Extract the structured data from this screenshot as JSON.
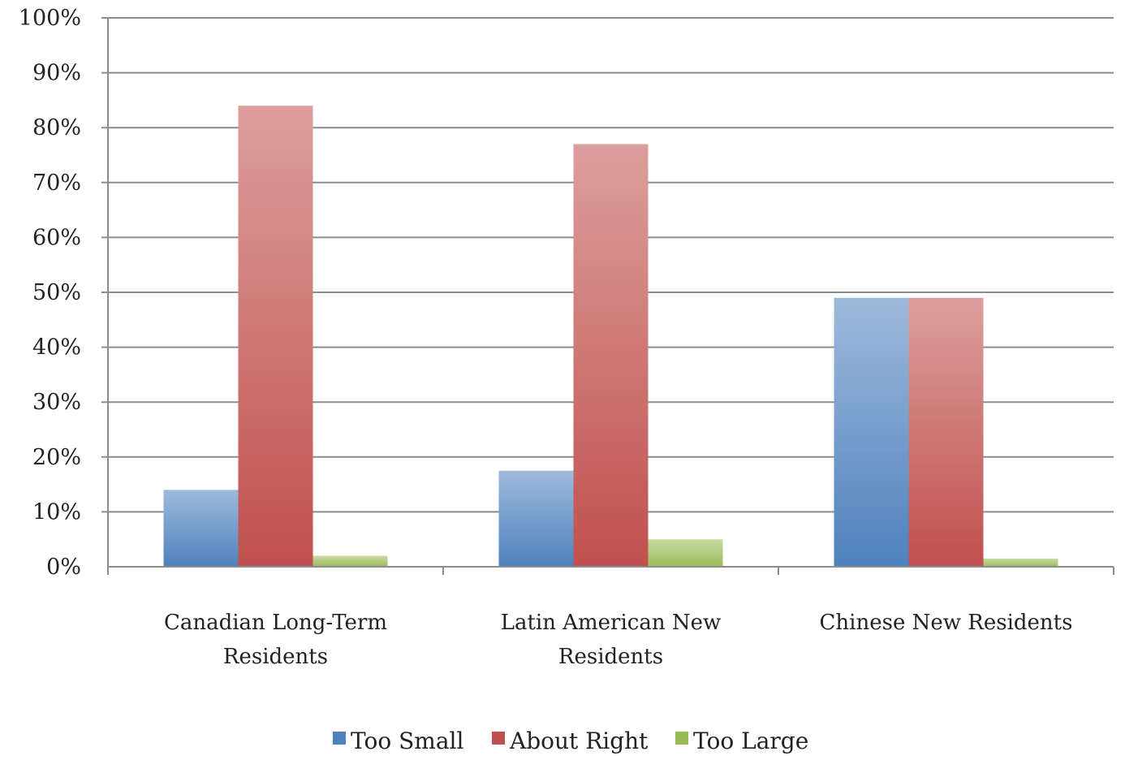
{
  "chart_data": {
    "type": "bar",
    "title": "",
    "xlabel": "",
    "ylabel": "",
    "categories": [
      [
        "Canadian Long-Term",
        "Residents"
      ],
      [
        "Latin American New",
        "Residents"
      ],
      [
        "Chinese New Residents"
      ]
    ],
    "series": [
      {
        "name": "Too Small",
        "values": [
          14,
          17.5,
          49
        ],
        "color": "#4f81bd"
      },
      {
        "name": "About Right",
        "values": [
          84,
          77,
          49
        ],
        "color": "#c0504d"
      },
      {
        "name": "Too Large",
        "values": [
          2,
          5,
          1.5
        ],
        "color": "#9bbb59"
      }
    ],
    "ylim": [
      0,
      100
    ],
    "yticks": [
      "0%",
      "10%",
      "20%",
      "30%",
      "40%",
      "50%",
      "60%",
      "70%",
      "80%",
      "90%",
      "100%"
    ],
    "grid": true,
    "legend": "bottom"
  }
}
